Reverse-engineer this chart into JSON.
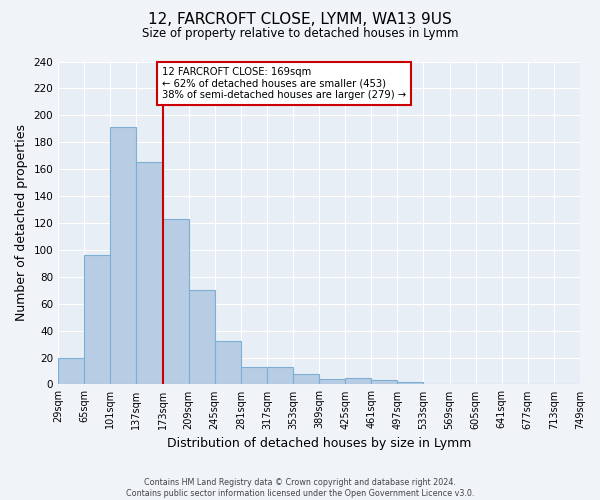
{
  "title": "12, FARCROFT CLOSE, LYMM, WA13 9US",
  "subtitle": "Size of property relative to detached houses in Lymm",
  "bar_edges": [
    29,
    65,
    101,
    137,
    173,
    209,
    245,
    281,
    317,
    353,
    389,
    425,
    461,
    497,
    533,
    569,
    605,
    641,
    677,
    713,
    749
  ],
  "bar_heights": [
    20,
    96,
    191,
    165,
    123,
    70,
    32,
    13,
    13,
    8,
    4,
    5,
    3,
    2,
    0,
    0,
    0,
    0,
    0,
    0
  ],
  "bar_color": "#b8cce4",
  "bar_edge_color": "#7bafd4",
  "background_color": "#f0f4f8",
  "plot_bg_color": "#e8eef5",
  "vline_color": "#cc0000",
  "vline_x": 173,
  "annotation_text": "12 FARCROFT CLOSE: 169sqm\n← 62% of detached houses are smaller (453)\n38% of semi-detached houses are larger (279) →",
  "annotation_box_color": "#ffffff",
  "annotation_box_edge_color": "#cc0000",
  "xlabel": "Distribution of detached houses by size in Lymm",
  "ylabel": "Number of detached properties",
  "ylim": [
    0,
    240
  ],
  "yticks": [
    0,
    20,
    40,
    60,
    80,
    100,
    120,
    140,
    160,
    180,
    200,
    220,
    240
  ],
  "tick_labels": [
    "29sqm",
    "65sqm",
    "101sqm",
    "137sqm",
    "173sqm",
    "209sqm",
    "245sqm",
    "281sqm",
    "317sqm",
    "353sqm",
    "389sqm",
    "425sqm",
    "461sqm",
    "497sqm",
    "533sqm",
    "569sqm",
    "605sqm",
    "641sqm",
    "677sqm",
    "713sqm",
    "749sqm"
  ],
  "footnote": "Contains HM Land Registry data © Crown copyright and database right 2024.\nContains public sector information licensed under the Open Government Licence v3.0."
}
